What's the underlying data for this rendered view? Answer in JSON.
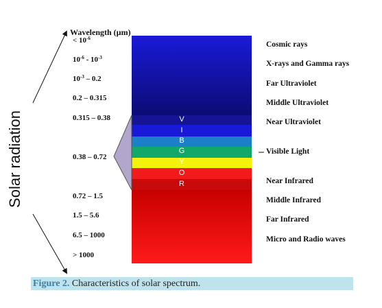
{
  "side_label": "Solar radiation",
  "wavelength_title": "Wavelength (µm)",
  "wavelengths": [
    {
      "pre": "< 10",
      "s1": "-6",
      "mid": "",
      "s2": "",
      "post": ""
    },
    {
      "pre": "10",
      "s1": "-6",
      "mid": " - 10",
      "s2": "-3",
      "post": ""
    },
    {
      "pre": "10",
      "s1": "-3",
      "mid": " – 0.2",
      "s2": "",
      "post": ""
    },
    {
      "pre": "0.2 – 0.315",
      "s1": "",
      "mid": "",
      "s2": "",
      "post": ""
    },
    {
      "pre": "0.315 – 0.38",
      "s1": "",
      "mid": "",
      "s2": "",
      "post": ""
    },
    {
      "pre": "0.38 – 0.72",
      "s1": "",
      "mid": "",
      "s2": "",
      "post": ""
    },
    {
      "pre": "0.72 – 1.5",
      "s1": "",
      "mid": "",
      "s2": "",
      "post": ""
    },
    {
      "pre": "1.5 – 5.6",
      "s1": "",
      "mid": "",
      "s2": "",
      "post": ""
    },
    {
      "pre": "6.5 – 1000",
      "s1": "",
      "mid": "",
      "s2": "",
      "post": ""
    },
    {
      "pre": "> 1000",
      "s1": "",
      "mid": "",
      "s2": "",
      "post": ""
    }
  ],
  "radiation_types": [
    "Cosmic rays",
    "X-rays and Gamma rays",
    "Far Ultraviolet",
    "Middle Ultraviolet",
    "Near Ultraviolet",
    "Visible Light",
    "Near Infrared",
    "Middle Infrared",
    "Far Infrared",
    "Micro and Radio waves"
  ],
  "visible_letters": [
    "V",
    "I",
    "B",
    "G",
    "Y",
    "O",
    "R"
  ],
  "colors": {
    "ultraviolet_top": "#1a1ad8",
    "ultraviolet_bottom": "#0a0a6a",
    "violet": "#141494",
    "indigo": "#1919d8",
    "blue": "#1b80c8",
    "green": "#11a86a",
    "yellow": "#f2f20a",
    "orange": "#f21a1a",
    "red": "#c80a0a",
    "infrared_top": "#c80000",
    "infrared_bottom": "#ff1a1a",
    "wedge": "#b3a6cc",
    "caption_bg": "#bfe3ec",
    "caption_label": "#3f7fa4"
  },
  "caption": {
    "label": "Figure 2.",
    "text": " Characteristics of solar spectrum."
  }
}
